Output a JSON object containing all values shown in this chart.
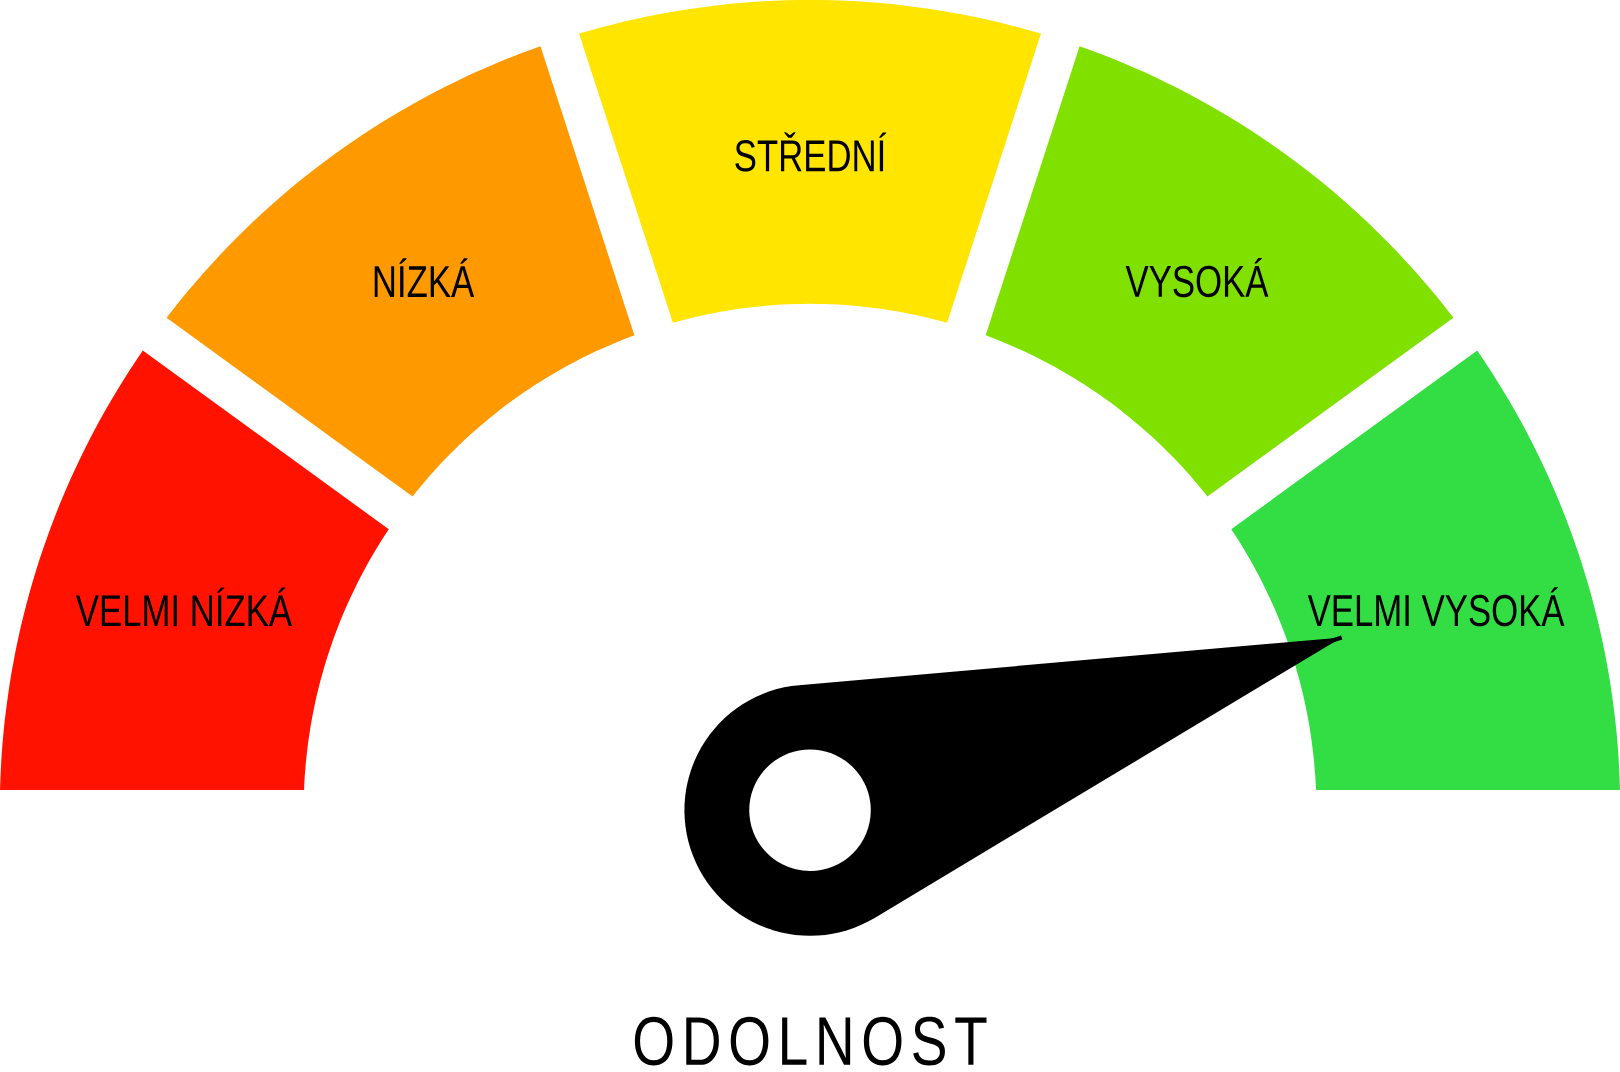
{
  "chart_data": {
    "type": "donut",
    "title": "ODOLNOST",
    "categories": [
      "VELMI NÍZKÁ",
      "NÍZKÁ",
      "STŘEDNÍ",
      "VYSOKÁ",
      "VELMI VYSOKÁ"
    ],
    "values": [
      20,
      20,
      20,
      20,
      20
    ],
    "colors": [
      "#ff1300",
      "#ff9900",
      "#ffe500",
      "#80e000",
      "#33dd44"
    ],
    "needle": "VELMI VYSOKÁ"
  }
}
